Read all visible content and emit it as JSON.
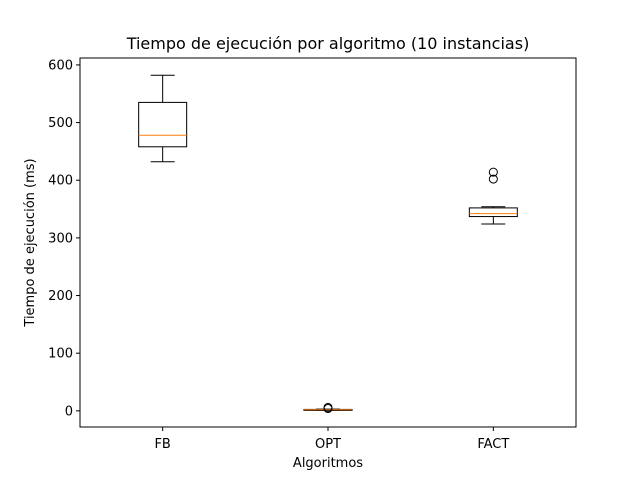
{
  "chart_data": {
    "type": "box",
    "title": "Tiempo de ejecución por algoritmo (10 instancias)",
    "xlabel": "Algoritmos",
    "ylabel": "Tiempo de ejecución (ms)",
    "categories": [
      "FB",
      "OPT",
      "FACT"
    ],
    "ylim": [
      -28,
      612
    ],
    "yticks": [
      0,
      100,
      200,
      300,
      400,
      500,
      600
    ],
    "grid": false,
    "boxes": [
      {
        "category": "FB",
        "whisker_low": 432,
        "q1": 458,
        "median": 478,
        "q3": 535,
        "whisker_high": 582,
        "outliers": []
      },
      {
        "category": "OPT",
        "whisker_low": 1,
        "q1": 1.5,
        "median": 2,
        "q3": 2.5,
        "whisker_high": 3,
        "outliers": [
          6,
          4
        ]
      },
      {
        "category": "FACT",
        "whisker_low": 324,
        "q1": 337,
        "median": 342,
        "q3": 352,
        "whisker_high": 354,
        "outliers": [
          402,
          414
        ]
      }
    ]
  },
  "colors": {
    "box": "#000000",
    "median": "#ff7f0e",
    "background": "#ffffff"
  }
}
